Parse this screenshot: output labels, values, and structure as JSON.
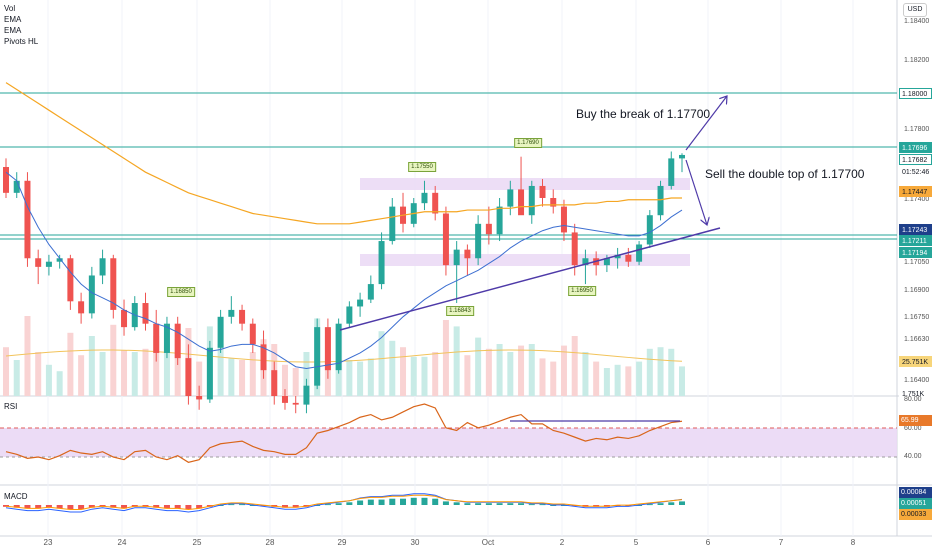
{
  "indicators": [
    "Vol",
    "EMA",
    "EMA",
    "Pivots HL"
  ],
  "currency": "USD",
  "annotations": {
    "buy": "Buy the break of 1.17700",
    "sell": "Sell the double top of 1.17700"
  },
  "pivot_labels": [
    "1.16850",
    "1.17550",
    "1.17690",
    "1.16843",
    "1.16950"
  ],
  "price_axis": [
    "1.18400",
    "1.18200",
    "1.17800",
    "1.17400",
    "1.17050",
    "1.16900",
    "1.16750",
    "1.16630",
    "1.16400"
  ],
  "price_tags": [
    {
      "text": "1.18000",
      "bg": "#ffffff",
      "fg": "#131722",
      "border": "#26a69a"
    },
    {
      "text": "1.17696",
      "bg": "#26a69a",
      "fg": "#ffffff",
      "border": "#26a69a"
    },
    {
      "text": "1.17682",
      "bg": "#ffffff",
      "fg": "#131722",
      "border": "#26a69a"
    },
    {
      "text": "01:52:46",
      "bg": "#ffffff",
      "fg": "#131722",
      "border": "#ffffff"
    },
    {
      "text": "1.17447",
      "bg": "#f7a93a",
      "fg": "#131722",
      "border": "#f7a93a"
    },
    {
      "text": "1.17243",
      "bg": "#1e3f8a",
      "fg": "#ffffff",
      "border": "#1e3f8a"
    },
    {
      "text": "1.17211",
      "bg": "#26a69a",
      "fg": "#ffffff",
      "border": "#26a69a"
    },
    {
      "text": "1.17194",
      "bg": "#26a69a",
      "fg": "#ffffff",
      "border": "#26a69a"
    },
    {
      "text": "25.751K",
      "bg": "#f7d57a",
      "fg": "#131722",
      "border": "#f7d57a"
    },
    {
      "text": "1.751K",
      "bg": "#ffffff",
      "fg": "#131722",
      "border": "#ffffff"
    }
  ],
  "rsi": {
    "title": "RSI",
    "axis": [
      "80.00",
      "60.00",
      "40.00"
    ],
    "value": "65.99"
  },
  "macd": {
    "title": "MACD",
    "values": [
      "0.00084",
      "0.00051",
      "0.00033"
    ]
  },
  "dates": [
    "23",
    "24",
    "25",
    "28",
    "29",
    "30",
    "Oct",
    "2",
    "5",
    "6",
    "7",
    "8"
  ],
  "chart_data": {
    "type": "candlestick",
    "series": [
      {
        "name": "Candles",
        "values": [
          [
            1.1763,
            1.1768,
            1.1745,
            1.1748
          ],
          [
            1.1748,
            1.176,
            1.1745,
            1.1755
          ],
          [
            1.1755,
            1.176,
            1.1705,
            1.171
          ],
          [
            1.171,
            1.1715,
            1.1695,
            1.1705
          ],
          [
            1.1705,
            1.1712,
            1.17,
            1.1708
          ],
          [
            1.1708,
            1.1712,
            1.1704,
            1.171
          ],
          [
            1.171,
            1.1712,
            1.168,
            1.1685
          ],
          [
            1.1685,
            1.169,
            1.1672,
            1.1678
          ],
          [
            1.1678,
            1.1705,
            1.1675,
            1.17
          ],
          [
            1.17,
            1.1715,
            1.1695,
            1.171
          ],
          [
            1.171,
            1.1712,
            1.1675,
            1.168
          ],
          [
            1.168,
            1.1686,
            1.1665,
            1.167
          ],
          [
            1.167,
            1.1688,
            1.1668,
            1.1684
          ],
          [
            1.1684,
            1.169,
            1.1668,
            1.1672
          ],
          [
            1.1672,
            1.168,
            1.165,
            1.1655
          ],
          [
            1.1655,
            1.1676,
            1.1652,
            1.1672
          ],
          [
            1.1672,
            1.1676,
            1.1648,
            1.1652
          ],
          [
            1.1652,
            1.166,
            1.1625,
            1.163
          ],
          [
            1.163,
            1.1636,
            1.1622,
            1.1628
          ],
          [
            1.1628,
            1.1662,
            1.1626,
            1.1658
          ],
          [
            1.1658,
            1.168,
            1.1655,
            1.1676
          ],
          [
            1.1676,
            1.1688,
            1.1672,
            1.168
          ],
          [
            1.168,
            1.1683,
            1.1668,
            1.1672
          ],
          [
            1.1672,
            1.1675,
            1.1655,
            1.166
          ],
          [
            1.166,
            1.1668,
            1.164,
            1.1645
          ],
          [
            1.1645,
            1.165,
            1.1625,
            1.163
          ],
          [
            1.163,
            1.1634,
            1.1622,
            1.1626
          ],
          [
            1.1626,
            1.163,
            1.162,
            1.1625
          ],
          [
            1.1625,
            1.164,
            1.162,
            1.1636
          ],
          [
            1.1636,
            1.1675,
            1.1634,
            1.167
          ],
          [
            1.167,
            1.1675,
            1.164,
            1.1645
          ],
          [
            1.1645,
            1.1675,
            1.1643,
            1.1672
          ],
          [
            1.1672,
            1.1685,
            1.167,
            1.1682
          ],
          [
            1.1682,
            1.169,
            1.1676,
            1.1686
          ],
          [
            1.1686,
            1.17,
            1.1684,
            1.1695
          ],
          [
            1.1695,
            1.1725,
            1.1692,
            1.172
          ],
          [
            1.172,
            1.1745,
            1.1718,
            1.174
          ],
          [
            1.174,
            1.1748,
            1.1725,
            1.173
          ],
          [
            1.173,
            1.1745,
            1.1728,
            1.1742
          ],
          [
            1.1742,
            1.1755,
            1.1738,
            1.1748
          ],
          [
            1.1748,
            1.1752,
            1.1732,
            1.1736
          ],
          [
            1.1736,
            1.174,
            1.17,
            1.1706
          ],
          [
            1.1706,
            1.172,
            1.1684,
            1.1715
          ],
          [
            1.1715,
            1.1718,
            1.17,
            1.171
          ],
          [
            1.171,
            1.1735,
            1.1706,
            1.173
          ],
          [
            1.173,
            1.174,
            1.1718,
            1.1724
          ],
          [
            1.1724,
            1.1745,
            1.172,
            1.174
          ],
          [
            1.174,
            1.1755,
            1.1735,
            1.175
          ],
          [
            1.175,
            1.1769,
            1.1745,
            1.1735
          ],
          [
            1.1735,
            1.1755,
            1.173,
            1.1752
          ],
          [
            1.1752,
            1.1756,
            1.174,
            1.1745
          ],
          [
            1.1745,
            1.175,
            1.1736,
            1.174
          ],
          [
            1.174,
            1.1744,
            1.172,
            1.1725
          ],
          [
            1.1725,
            1.173,
            1.17,
            1.1706
          ],
          [
            1.1706,
            1.1715,
            1.1695,
            1.171
          ],
          [
            1.171,
            1.1714,
            1.17,
            1.1706
          ],
          [
            1.1706,
            1.1712,
            1.1702,
            1.171
          ],
          [
            1.171,
            1.1716,
            1.1704,
            1.1712
          ],
          [
            1.1712,
            1.1716,
            1.1705,
            1.1708
          ],
          [
            1.1708,
            1.172,
            1.1706,
            1.1718
          ],
          [
            1.1718,
            1.1738,
            1.1716,
            1.1735
          ],
          [
            1.1735,
            1.1755,
            1.1732,
            1.1752
          ],
          [
            1.1752,
            1.1772,
            1.175,
            1.1768
          ],
          [
            1.1768,
            1.1771,
            1.176,
            1.177
          ]
        ]
      }
    ],
    "ema_short": [
      1.176,
      1.1755,
      1.174,
      1.1728,
      1.1718,
      1.171,
      1.1702,
      1.1695,
      1.169,
      1.1687,
      1.1684,
      1.168,
      1.1677,
      1.1675,
      1.1672,
      1.167,
      1.1667,
      1.1663,
      1.1659,
      1.1656,
      1.1657,
      1.1659,
      1.166,
      1.166,
      1.1658,
      1.1655,
      1.1651,
      1.1647,
      1.1646,
      1.1647,
      1.1648,
      1.1649,
      1.1652,
      1.1655,
      1.1659,
      1.1664,
      1.167,
      1.1676,
      1.1681,
      1.1686,
      1.169,
      1.1694,
      1.1697,
      1.17,
      1.1703,
      1.1707,
      1.1711,
      1.1716,
      1.172,
      1.1723,
      1.1726,
      1.1728,
      1.1729,
      1.1728,
      1.1727,
      1.1726,
      1.1725,
      1.1724,
      1.1723,
      1.1723,
      1.1725,
      1.1729,
      1.1734,
      1.1738
    ],
    "ema_long": [
      1.1812,
      1.1808,
      1.1804,
      1.18,
      1.1796,
      1.1792,
      1.1788,
      1.1784,
      1.178,
      1.1776,
      1.1772,
      1.1768,
      1.1764,
      1.176,
      1.1757,
      1.1754,
      1.1751,
      1.1748,
      1.1746,
      1.1744,
      1.1742,
      1.174,
      1.1738,
      1.1736,
      1.1735,
      1.1734,
      1.1733,
      1.1732,
      1.1731,
      1.173,
      1.173,
      1.173,
      1.173,
      1.1731,
      1.1732,
      1.1733,
      1.1734,
      1.1735,
      1.1736,
      1.1737,
      1.1737,
      1.1737,
      1.1737,
      1.1738,
      1.1738,
      1.1738,
      1.1739,
      1.1739,
      1.174,
      1.174,
      1.1741,
      1.1741,
      1.1741,
      1.1741,
      1.1742,
      1.1742,
      1.1743,
      1.1743,
      1.1744,
      1.1744,
      1.1744,
      1.1744,
      1.1745,
      1.1745
    ],
    "rsi": [
      44,
      42,
      39,
      40,
      38,
      41,
      45,
      43,
      42,
      44,
      40,
      38,
      44,
      45,
      40,
      38,
      41,
      36,
      38,
      47,
      50,
      51,
      52,
      48,
      45,
      44,
      42,
      42,
      47,
      58,
      60,
      63,
      66,
      70,
      72,
      68,
      70,
      74,
      78,
      80,
      77,
      62,
      60,
      66,
      62,
      64,
      67,
      70,
      72,
      65,
      65,
      60,
      58,
      55,
      52,
      54,
      53,
      55,
      54,
      56,
      60,
      63,
      66,
      67
    ],
    "macd_hist": [
      -2,
      -3,
      -4,
      -4,
      -3,
      -4,
      -5,
      -5,
      -3,
      -2,
      -3,
      -4,
      -2,
      -2,
      -3,
      -4,
      -4,
      -5,
      -4,
      -2,
      0,
      1,
      1,
      0,
      -1,
      -2,
      -3,
      -3,
      -2,
      0,
      1,
      2,
      3,
      5,
      6,
      6,
      7,
      7,
      8,
      8,
      7,
      4,
      3,
      2,
      2,
      2,
      2,
      2,
      2,
      1,
      1,
      0,
      0,
      -1,
      -2,
      -2,
      -2,
      -1,
      -1,
      0,
      1,
      2,
      3,
      4
    ],
    "ylim": [
      1.163,
      1.186
    ]
  }
}
